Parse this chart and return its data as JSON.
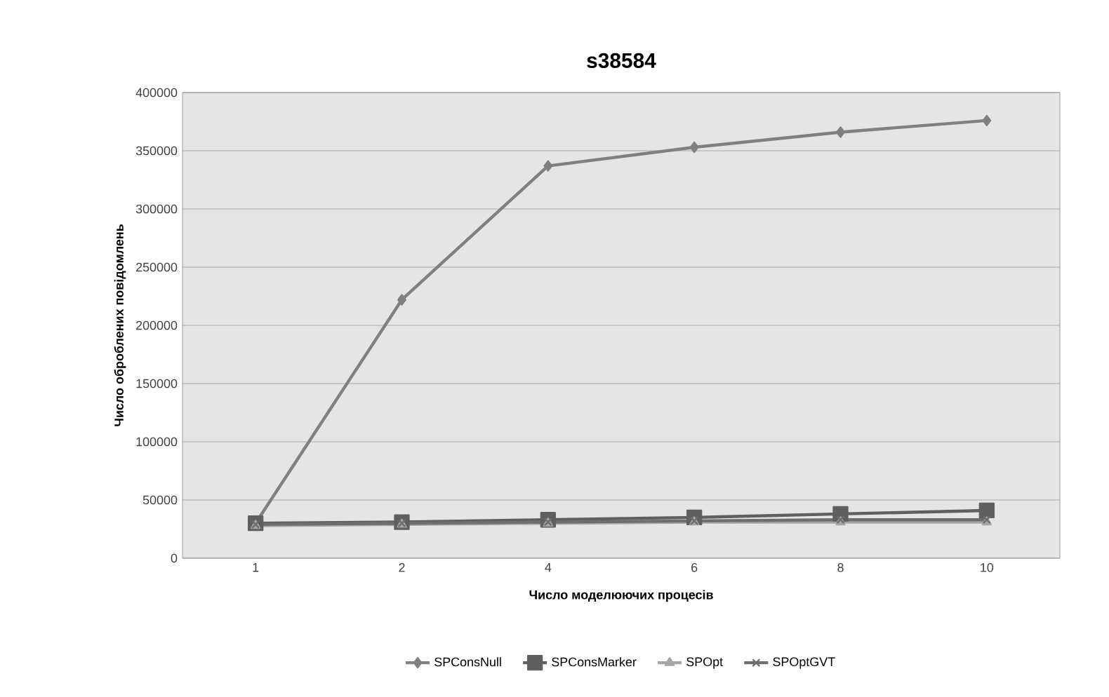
{
  "chart_data": {
    "type": "line",
    "title": "s38584",
    "xlabel": "Число моделюючих процесів",
    "ylabel": "Число оброблених повідомлень",
    "categories": [
      "1",
      "2",
      "4",
      "6",
      "8",
      "10"
    ],
    "ylim": [
      0,
      400000
    ],
    "yticks": [
      0,
      50000,
      100000,
      150000,
      200000,
      250000,
      300000,
      350000,
      400000
    ],
    "grid": "y",
    "legend": "bottom",
    "line_style": "solid",
    "series": [
      {
        "name": "SPConsNull",
        "color": "#808080",
        "marker": "diamond",
        "values": [
          30000,
          222000,
          337000,
          353000,
          366000,
          376000
        ]
      },
      {
        "name": "SPConsMarker",
        "color": "#5f5f5f",
        "marker": "square",
        "values": [
          30000,
          31000,
          33000,
          35000,
          38000,
          41000
        ]
      },
      {
        "name": "SPOpt",
        "color": "#a6a6a6",
        "marker": "triangle",
        "values": [
          28000,
          29000,
          30000,
          31000,
          31000,
          31000
        ]
      },
      {
        "name": "SPOptGVT",
        "color": "#6e6e6e",
        "marker": "cross",
        "values": [
          29000,
          30000,
          31000,
          32000,
          33000,
          33000
        ]
      }
    ]
  }
}
